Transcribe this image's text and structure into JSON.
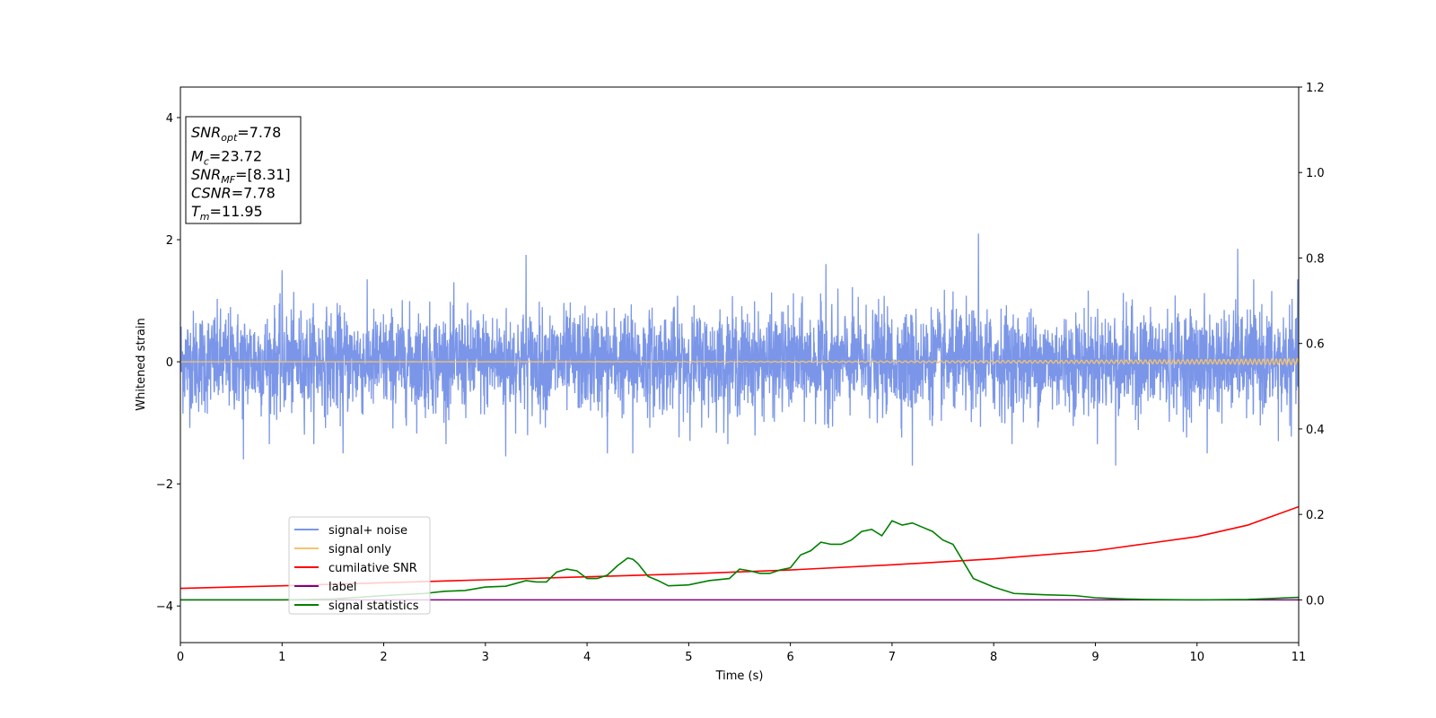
{
  "chart_data": {
    "type": "line",
    "xlabel": "Time (s)",
    "ylabel": "Whitened strain",
    "xlim": [
      0,
      11
    ],
    "ylim_left": [
      -4.6,
      4.5
    ],
    "ylim_right": [
      -0.1,
      1.2
    ],
    "x_ticks": [
      "0",
      "1",
      "2",
      "3",
      "4",
      "5",
      "6",
      "7",
      "8",
      "9",
      "10",
      "11"
    ],
    "y_left_ticks": [
      "−4",
      "−2",
      "0",
      "2",
      "4"
    ],
    "y_right_ticks": [
      "0.0",
      "0.2",
      "0.4",
      "0.6",
      "0.8",
      "1.0",
      "1.2"
    ],
    "grid": false,
    "legend_position": "lower-left",
    "info_box": [
      {
        "sym": "SNR",
        "sub": "opt",
        "val": "=7.78"
      },
      {
        "sym": "M",
        "sub": "c",
        "val": "=23.72"
      },
      {
        "sym": "SNR",
        "sub": "MF",
        "val": "=[8.31]"
      },
      {
        "sym": "CSNR",
        "sub": "",
        "val": "=7.78"
      },
      {
        "sym": "T",
        "sub": "m",
        "val": "=11.95"
      }
    ],
    "series": [
      {
        "name": "signal+ noise",
        "axis": "left",
        "color": "#7b96e8",
        "noise_amplitude": 0.75,
        "spikes": [
          [
            0.62,
            -1.6
          ],
          [
            1.0,
            1.5
          ],
          [
            1.6,
            -1.5
          ],
          [
            3.4,
            1.75
          ],
          [
            3.2,
            -1.55
          ],
          [
            4.2,
            -1.5
          ],
          [
            4.45,
            -1.5
          ],
          [
            6.35,
            1.6
          ],
          [
            7.2,
            -1.7
          ],
          [
            7.85,
            2.1
          ],
          [
            9.2,
            -1.7
          ],
          [
            10.1,
            1.85
          ],
          [
            10.4,
            1.85
          ],
          [
            10.1,
            -1.5
          ],
          [
            10.8,
            1.7
          ],
          [
            10.8,
            -1.3
          ]
        ]
      },
      {
        "name": "signal only",
        "axis": "left",
        "color": "#f5c36e",
        "amplitude_start": 0.0,
        "amplitude_end": 0.05
      },
      {
        "name": "cumilative SNR",
        "axis": "right",
        "color": "#ff0000",
        "x": [
          0,
          1,
          2,
          3,
          4,
          5,
          6,
          7,
          8,
          9,
          10,
          10.5,
          11
        ],
        "y": [
          0.027,
          0.033,
          0.04,
          0.047,
          0.054,
          0.061,
          0.07,
          0.082,
          0.096,
          0.115,
          0.148,
          0.175,
          0.218
        ]
      },
      {
        "name": "label",
        "axis": "right",
        "color": "#800080",
        "x": [
          0,
          11
        ],
        "y": [
          0.0,
          0.0
        ]
      },
      {
        "name": "signal statistics",
        "axis": "right",
        "color": "#008000",
        "x": [
          0,
          0.5,
          1,
          1.5,
          2,
          2.4,
          2.6,
          2.8,
          3.0,
          3.2,
          3.4,
          3.5,
          3.6,
          3.7,
          3.8,
          3.9,
          4.0,
          4.1,
          4.2,
          4.3,
          4.4,
          4.45,
          4.5,
          4.6,
          4.7,
          4.8,
          5.0,
          5.2,
          5.4,
          5.5,
          5.6,
          5.7,
          5.8,
          5.9,
          6.0,
          6.1,
          6.2,
          6.3,
          6.4,
          6.5,
          6.6,
          6.7,
          6.8,
          6.9,
          7.0,
          7.1,
          7.2,
          7.3,
          7.4,
          7.5,
          7.6,
          7.7,
          7.8,
          7.9,
          8.0,
          8.2,
          8.5,
          8.8,
          9.0,
          9.3,
          9.5,
          10.0,
          10.5,
          11.0
        ],
        "y": [
          0.0,
          0.0,
          0.0,
          0.002,
          0.01,
          0.015,
          0.02,
          0.022,
          0.03,
          0.032,
          0.045,
          0.042,
          0.042,
          0.065,
          0.072,
          0.068,
          0.05,
          0.05,
          0.058,
          0.08,
          0.098,
          0.095,
          0.085,
          0.055,
          0.045,
          0.033,
          0.035,
          0.045,
          0.05,
          0.072,
          0.068,
          0.062,
          0.062,
          0.07,
          0.075,
          0.105,
          0.115,
          0.135,
          0.13,
          0.13,
          0.14,
          0.16,
          0.165,
          0.15,
          0.185,
          0.175,
          0.18,
          0.17,
          0.16,
          0.14,
          0.13,
          0.09,
          0.05,
          0.04,
          0.03,
          0.015,
          0.012,
          0.01,
          0.005,
          0.002,
          0.001,
          0.0,
          0.001,
          0.006
        ]
      }
    ]
  }
}
